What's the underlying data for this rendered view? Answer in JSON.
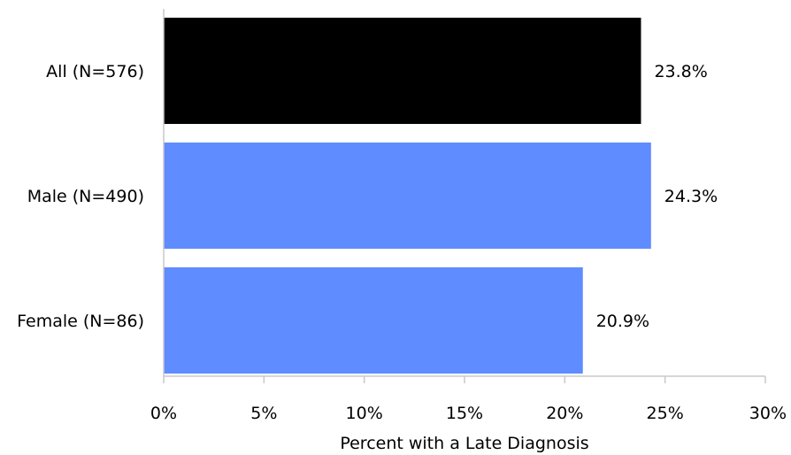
{
  "chart_data": {
    "type": "bar",
    "orientation": "horizontal",
    "categories": [
      "All (N=576)",
      "Male (N=490)",
      "Female (N=86)"
    ],
    "values": [
      23.8,
      24.3,
      20.9
    ],
    "value_labels": [
      "23.8%",
      "24.3%",
      "20.9%"
    ],
    "bar_colors": [
      "#000000",
      "#5f8cff",
      "#5f8cff"
    ],
    "xlabel": "Percent with a Late Diagnosis",
    "ylabel": "",
    "xlim": [
      0,
      30
    ],
    "xticks": [
      0,
      5,
      10,
      15,
      20,
      25,
      30
    ],
    "xtick_labels": [
      "0%",
      "5%",
      "10%",
      "15%",
      "20%",
      "25%",
      "30%"
    ],
    "grid": false,
    "legend": "none"
  }
}
